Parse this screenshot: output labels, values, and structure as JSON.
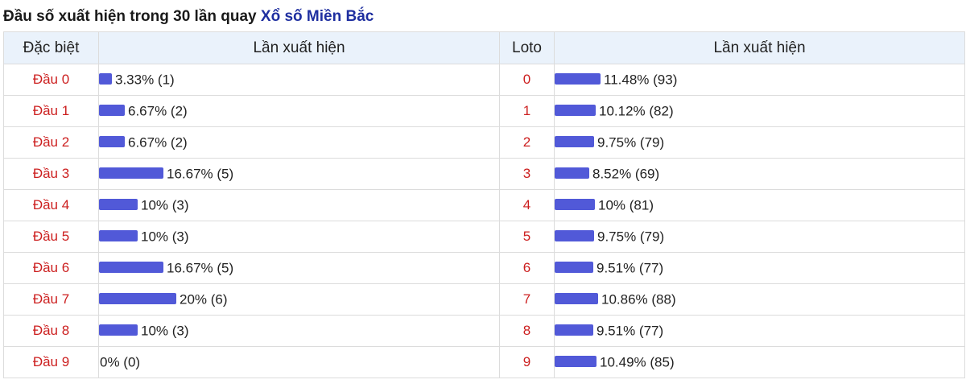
{
  "title": {
    "prefix": "Đầu số xuất hiện trong 30 lần quay",
    "link": "Xổ số Miền Bắc"
  },
  "headers": {
    "dac_biet": "Đặc biệt",
    "lan_xuat_hien_1": "Lần xuất hiện",
    "loto": "Loto",
    "lan_xuat_hien_2": "Lần xuất hiện"
  },
  "colors": {
    "bar": "#5159d8",
    "label_red": "#cc1f1f",
    "header_bg": "#eaf2fb",
    "link_blue": "#1f2fa0"
  },
  "rows": [
    {
      "dau_label": "Đầu 0",
      "db_pct": 3.33,
      "db_text": "3.33% (1)",
      "loto_label": "0",
      "loto_pct": 11.48,
      "loto_text": "11.48% (93)"
    },
    {
      "dau_label": "Đầu 1",
      "db_pct": 6.67,
      "db_text": "6.67% (2)",
      "loto_label": "1",
      "loto_pct": 10.12,
      "loto_text": "10.12% (82)"
    },
    {
      "dau_label": "Đầu 2",
      "db_pct": 6.67,
      "db_text": "6.67% (2)",
      "loto_label": "2",
      "loto_pct": 9.75,
      "loto_text": "9.75% (79)"
    },
    {
      "dau_label": "Đầu 3",
      "db_pct": 16.67,
      "db_text": "16.67% (5)",
      "loto_label": "3",
      "loto_pct": 8.52,
      "loto_text": "8.52% (69)"
    },
    {
      "dau_label": "Đầu 4",
      "db_pct": 10,
      "db_text": "10% (3)",
      "loto_label": "4",
      "loto_pct": 10,
      "loto_text": "10% (81)"
    },
    {
      "dau_label": "Đầu 5",
      "db_pct": 10,
      "db_text": "10% (3)",
      "loto_label": "5",
      "loto_pct": 9.75,
      "loto_text": "9.75% (79)"
    },
    {
      "dau_label": "Đầu 6",
      "db_pct": 16.67,
      "db_text": "16.67% (5)",
      "loto_label": "6",
      "loto_pct": 9.51,
      "loto_text": "9.51% (77)"
    },
    {
      "dau_label": "Đầu 7",
      "db_pct": 20,
      "db_text": "20% (6)",
      "loto_label": "7",
      "loto_pct": 10.86,
      "loto_text": "10.86% (88)"
    },
    {
      "dau_label": "Đầu 8",
      "db_pct": 10,
      "db_text": "10% (3)",
      "loto_label": "8",
      "loto_pct": 9.51,
      "loto_text": "9.51% (77)"
    },
    {
      "dau_label": "Đầu 9",
      "db_pct": 0,
      "db_text": "0% (0)",
      "loto_label": "9",
      "loto_pct": 10.49,
      "loto_text": "10.49% (85)"
    }
  ]
}
